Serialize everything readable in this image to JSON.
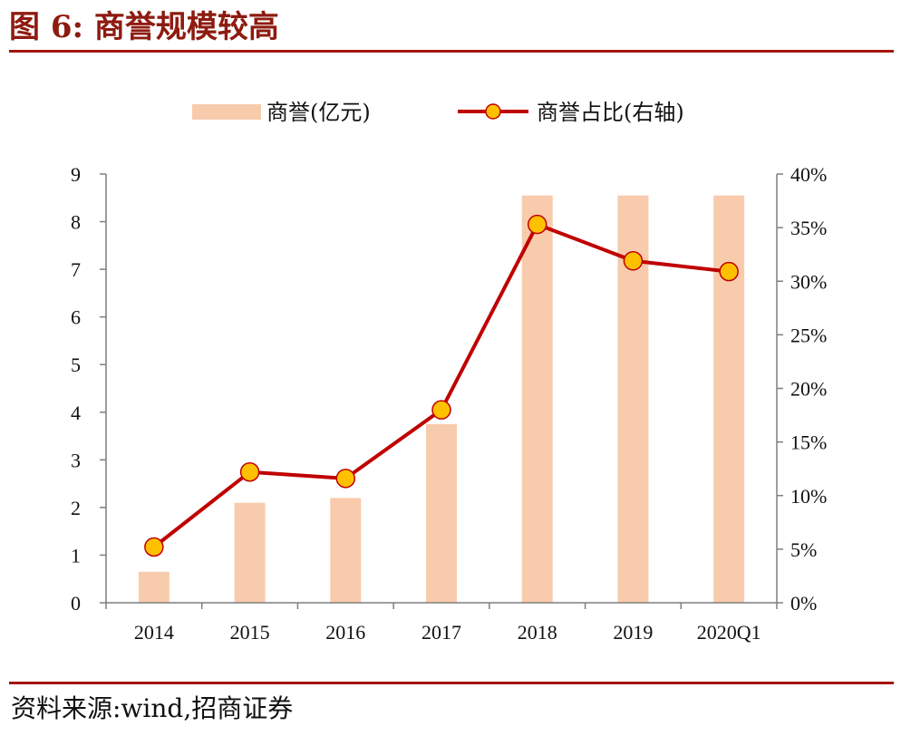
{
  "figure": {
    "title": "图 6:  商誉规模较高",
    "source": "资料来源:wind,招商证券"
  },
  "colors": {
    "title": "#8e1b10",
    "rule": "#a3160f",
    "bar": "#f8cbad",
    "line": "#c00000",
    "marker_fill": "#ffc000",
    "marker_stroke": "#c00000",
    "axis": "#7f7f7f"
  },
  "chart_data": {
    "type": "bar",
    "title": "",
    "categories": [
      "2014",
      "2015",
      "2016",
      "2017",
      "2018",
      "2019",
      "2020Q1"
    ],
    "series": [
      {
        "name": "商誉(亿元)",
        "type": "bar",
        "axis": "left",
        "values": [
          0.65,
          2.1,
          2.2,
          3.75,
          8.55,
          8.55,
          8.55
        ]
      },
      {
        "name": "商誉占比(右轴)",
        "type": "line",
        "axis": "right",
        "values": [
          5.2,
          12.2,
          11.6,
          18.0,
          35.3,
          31.9,
          30.9
        ]
      }
    ],
    "y_left": {
      "min": 0,
      "max": 9,
      "ticks": [
        "0",
        "1",
        "2",
        "3",
        "4",
        "5",
        "6",
        "7",
        "8",
        "9"
      ]
    },
    "y_right": {
      "min": 0,
      "max": 40,
      "ticks": [
        "0%",
        "5%",
        "10%",
        "15%",
        "20%",
        "25%",
        "30%",
        "35%",
        "40%"
      ]
    },
    "legend": "top-center",
    "grid": false
  }
}
